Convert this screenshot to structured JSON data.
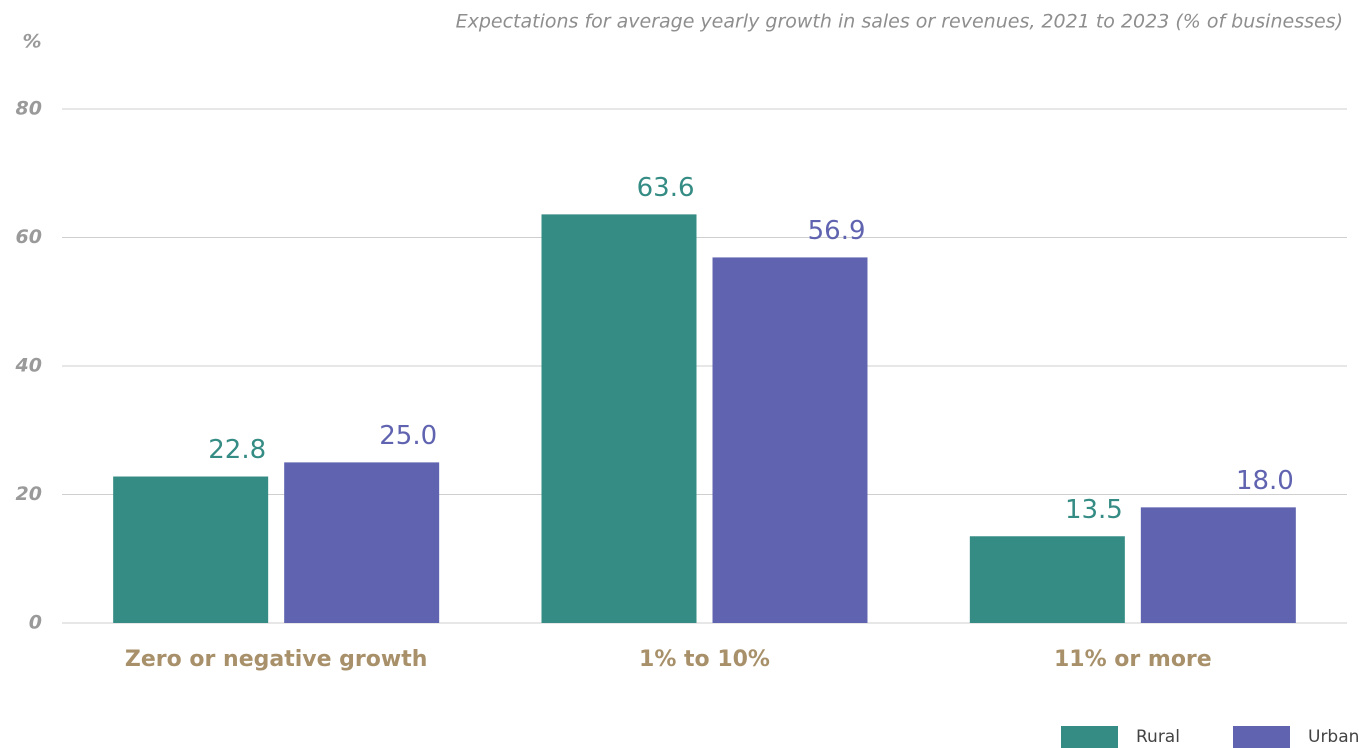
{
  "chart_data": {
    "type": "bar",
    "title": "Expectations for average yearly growth in sales or revenues, 2021 to 2023 (% of businesses)",
    "y_label": "%",
    "categories": [
      "Zero or negative growth",
      "1% to 10%",
      "11% or more"
    ],
    "series": [
      {
        "name": "Rural",
        "color": "#358c84",
        "values": [
          22.8,
          63.6,
          13.5
        ],
        "value_labels": [
          "22.8",
          "63.6",
          "13.5"
        ]
      },
      {
        "name": "Urban",
        "color": "#6064b0",
        "values": [
          25.0,
          56.9,
          18.0
        ],
        "value_labels": [
          "25.0",
          "56.9",
          "18.0"
        ]
      }
    ],
    "ylim": [
      0,
      80
    ],
    "yticks": [
      0,
      20,
      40,
      60,
      80
    ],
    "grid": true,
    "legend": "bottom-right"
  }
}
